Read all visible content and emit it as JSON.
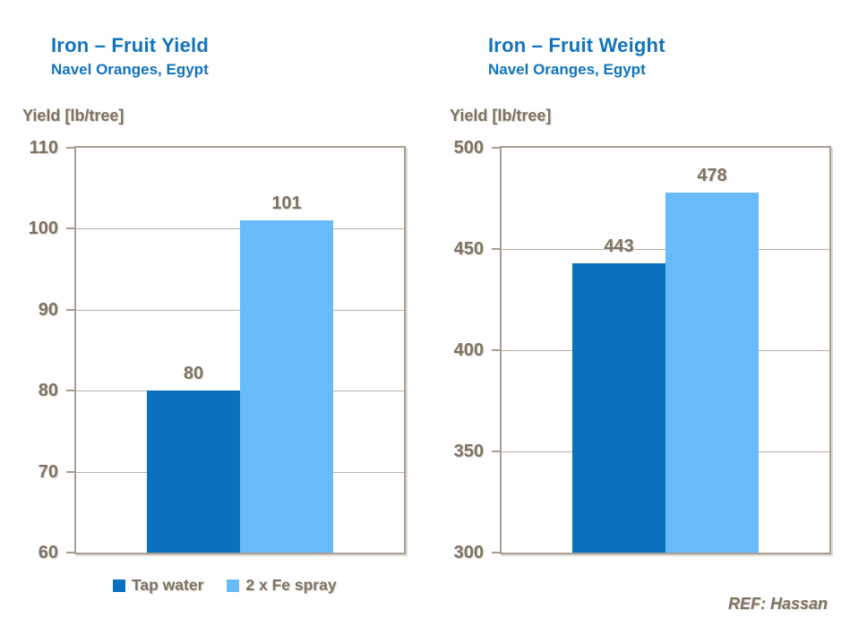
{
  "chart_data": [
    {
      "type": "bar",
      "title": "Iron – Fruit Yield",
      "subtitle": "Navel Oranges, Egypt",
      "ylabel": "Yield [lb/tree]",
      "categories": [
        "Tap water",
        "2 x Fe spray"
      ],
      "values": [
        80,
        101
      ],
      "value_labels": [
        "80",
        "101"
      ],
      "ylim": [
        60,
        110
      ],
      "yticks": [
        60,
        70,
        80,
        90,
        100,
        110
      ],
      "grid": true,
      "legend_position": "bottom",
      "bar_colors": [
        "#0971BE",
        "#68BBF8"
      ]
    },
    {
      "type": "bar",
      "title": "Iron – Fruit Weight",
      "subtitle": "Navel Oranges, Egypt",
      "ylabel": "Yield [lb/tree]",
      "categories": [
        "Tap water",
        "2 x Fe spray"
      ],
      "values": [
        443,
        478
      ],
      "value_labels": [
        "443",
        "478"
      ],
      "ylim": [
        300,
        500
      ],
      "yticks": [
        300,
        350,
        400,
        450,
        500
      ],
      "grid": true,
      "legend_position": "none",
      "bar_colors": [
        "#0971BE",
        "#68BBF8"
      ]
    }
  ],
  "legend": {
    "items": [
      {
        "label": "Tap water",
        "color": "#0971BE"
      },
      {
        "label": "2 x Fe spray",
        "color": "#68BBF8"
      }
    ]
  },
  "footer": {
    "reference": "REF: Hassan"
  },
  "colors": {
    "title_blue": "#1173BD",
    "text_brown": "#7D7363",
    "axis_line": "#A79D90",
    "gridline": "#B9B0A4",
    "shadow": "#D9D3CB",
    "slide_background": "#FFFFFF"
  }
}
